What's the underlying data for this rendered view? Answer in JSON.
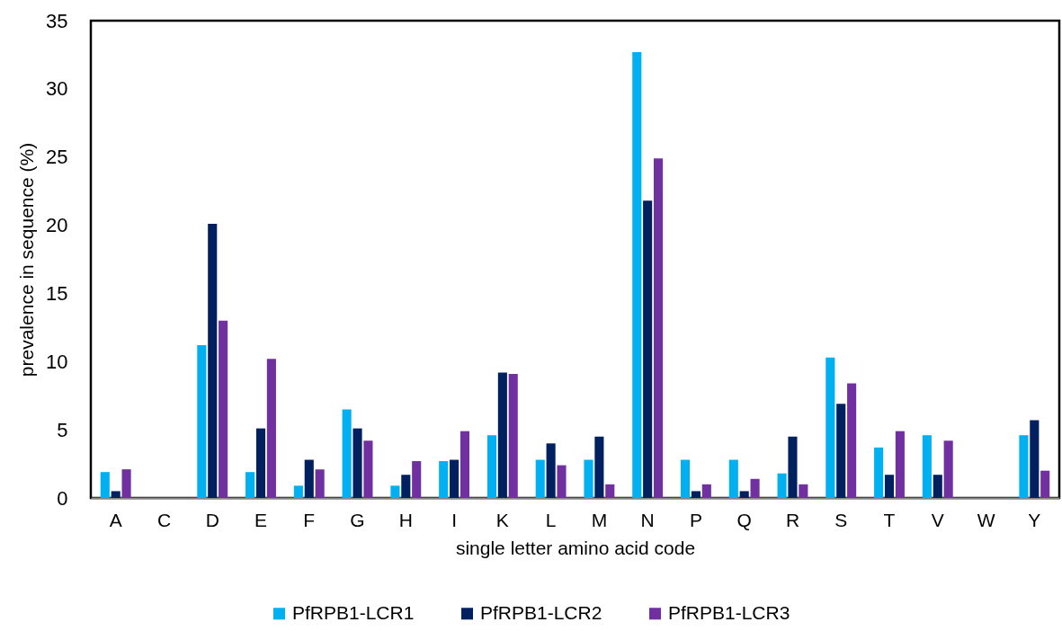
{
  "chart_data": {
    "type": "bar",
    "categories": [
      "A",
      "C",
      "D",
      "E",
      "F",
      "G",
      "H",
      "I",
      "K",
      "L",
      "M",
      "N",
      "P",
      "Q",
      "R",
      "S",
      "T",
      "V",
      "W",
      "Y"
    ],
    "series": [
      {
        "name": "PfRPB1-LCR1",
        "color": "#00b0f0",
        "values": [
          1.9,
          0,
          11.2,
          1.9,
          0.9,
          6.5,
          0.9,
          2.7,
          4.6,
          2.8,
          2.8,
          32.7,
          2.8,
          2.8,
          1.8,
          10.3,
          3.7,
          4.6,
          0,
          4.6
        ]
      },
      {
        "name": "PfRPB1-LCR2",
        "color": "#002060",
        "values": [
          0.5,
          0,
          20.1,
          5.1,
          2.8,
          5.1,
          1.7,
          2.8,
          9.2,
          4.0,
          4.5,
          21.8,
          0.5,
          0.5,
          4.5,
          6.9,
          1.7,
          1.7,
          0,
          5.7
        ]
      },
      {
        "name": "PfRPB1-LCR3",
        "color": "#7030a0",
        "values": [
          2.1,
          0,
          13.0,
          10.2,
          2.1,
          4.2,
          2.7,
          4.9,
          9.1,
          2.4,
          1.0,
          24.9,
          1.0,
          1.4,
          1.0,
          8.4,
          4.9,
          4.2,
          0,
          2.0
        ]
      }
    ],
    "xlabel": "single letter amino acid code",
    "ylabel": "prevalence in sequence (%)",
    "ylim": [
      0,
      35
    ],
    "yticks": [
      0,
      5,
      10,
      15,
      20,
      25,
      30,
      35
    ],
    "grid": false,
    "legend": "bottom"
  }
}
